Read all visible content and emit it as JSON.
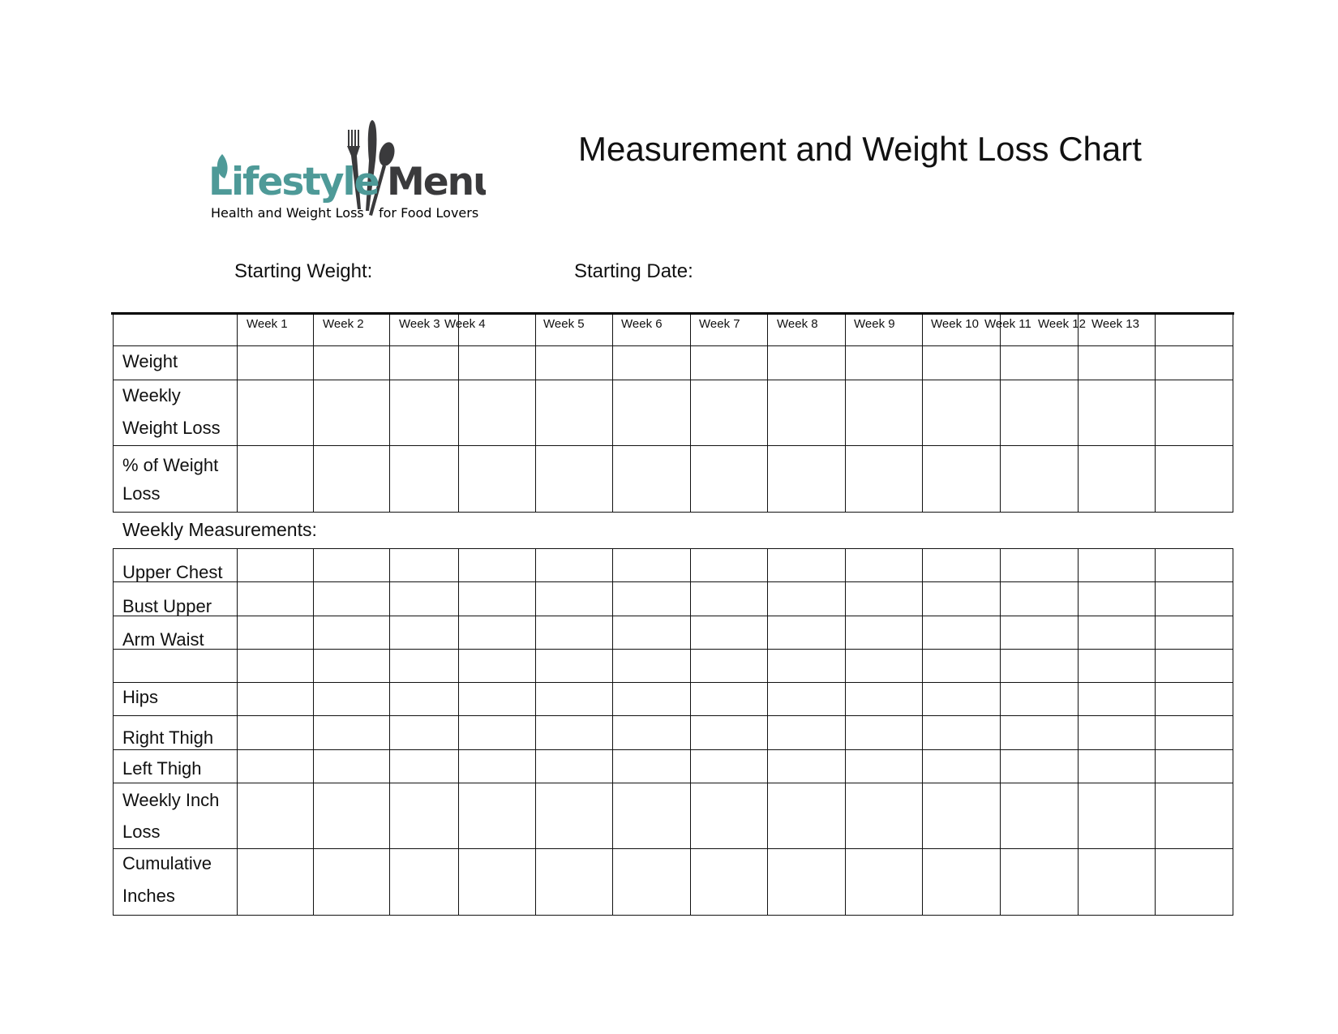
{
  "logo": {
    "brand_left": "Lifestyle",
    "brand_right": "Menu",
    "tagline_left": "Health and Weight Loss",
    "tagline_right": "for Food Lovers",
    "colors": {
      "teal": "#4e9a98",
      "dark": "#3a3a3c"
    }
  },
  "title": "Measurement and Weight Loss Chart",
  "fields": {
    "starting_weight_label": "Starting Weight:",
    "starting_weight_value": "",
    "starting_date_label": "Starting Date:",
    "starting_date_value": ""
  },
  "weight_table": {
    "columns": [
      "Week 1",
      "Week 2",
      "Week 3",
      "Week 4",
      "Week 5",
      "Week 6",
      "Week 7",
      "Week 8",
      "Week 9",
      "Week 10",
      "Week 11",
      "Week 12",
      "Week 13"
    ],
    "rows": [
      {
        "label_lines": [
          "Weight"
        ]
      },
      {
        "label_lines": [
          "Weekly",
          "Weight Loss"
        ]
      },
      {
        "label_lines": [
          "% of Weight",
          "Loss"
        ]
      }
    ]
  },
  "measurements": {
    "heading": "Weekly Measurements:",
    "rows": [
      {
        "label_lines": [
          "Upper Chest"
        ]
      },
      {
        "label_lines": [
          "Bust Upper"
        ]
      },
      {
        "label_lines": [
          "Arm Waist"
        ]
      },
      {
        "label_lines": [
          ""
        ]
      },
      {
        "label_lines": [
          "Hips"
        ]
      },
      {
        "label_lines": [
          "Right Thigh"
        ]
      },
      {
        "label_lines": [
          "Left Thigh"
        ]
      },
      {
        "label_lines": [
          "Weekly Inch",
          "Loss"
        ]
      },
      {
        "label_lines": [
          "Cumulative",
          "Inches"
        ]
      }
    ]
  }
}
